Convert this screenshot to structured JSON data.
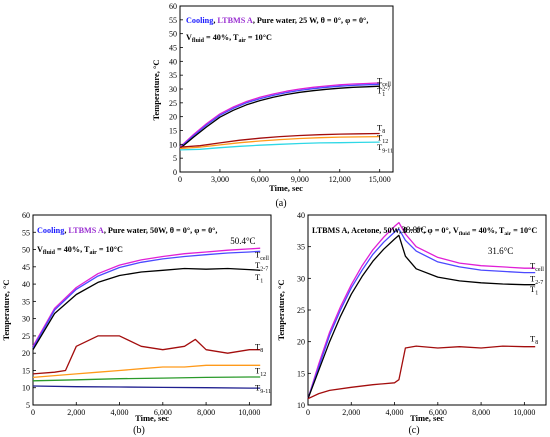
{
  "colors": {
    "cooling": "#1a1aff",
    "ltbms": "#9a2fd1",
    "T_cell": "#e01fd6",
    "T_2_7": "#4b49ff",
    "T_1": "#000000",
    "T_8": "#a30d0d",
    "T_12": "#ff9a1a",
    "T_9_11": "#2fd8e6",
    "T_green": "#2a9a2a",
    "T_navy": "#1f1f8f"
  },
  "chart_data": [
    {
      "id": "a",
      "type": "line",
      "caption": "(a)",
      "legend": {
        "cooling": "Cooling",
        "comma": ", ",
        "ltbms": "LTBMS A",
        "rest_line1": ", Pure water, 25 W, θ = 0°, φ = 0°,",
        "vfluid": "V",
        "vfluid_sub": "fluid",
        "vfluid_val": " = 40%, T",
        "tair_sub": "air",
        "tair_val": " = 10°C"
      },
      "xlabel": "Time, sec",
      "ylabel": "Temperature, °C",
      "xlim": [
        0,
        16000
      ],
      "ylim": [
        0,
        60
      ],
      "xticks": [
        0,
        3000,
        6000,
        9000,
        12000,
        15000
      ],
      "xtick_labels": [
        "0",
        "3,000",
        "6,000",
        "9,000",
        "12,000",
        "15,000"
      ],
      "yticks": [
        0,
        5,
        10,
        15,
        20,
        25,
        30,
        35,
        40,
        45,
        50,
        55,
        60
      ],
      "ytick_labels": [
        "0",
        "5",
        "10",
        "15",
        "20",
        "25",
        "30",
        "35",
        "40",
        "45",
        "50",
        "55",
        "60"
      ],
      "series": [
        {
          "name": "T_cell",
          "color": "#e01fd6",
          "x": [
            0,
            1000,
            2000,
            3000,
            4000,
            5000,
            6000,
            7000,
            8000,
            9000,
            10000,
            11000,
            12000,
            13000,
            14000,
            15000
          ],
          "y": [
            9,
            13.5,
            17.5,
            21,
            23.5,
            25.5,
            27,
            28.2,
            29.2,
            30,
            30.6,
            31.1,
            31.5,
            31.8,
            32,
            32.2
          ]
        },
        {
          "name": "T_2-7",
          "color": "#4b49ff",
          "x": [
            0,
            1000,
            2000,
            3000,
            4000,
            5000,
            6000,
            7000,
            8000,
            9000,
            10000,
            11000,
            12000,
            13000,
            14000,
            15000
          ],
          "y": [
            8.8,
            13,
            17,
            20.5,
            23,
            25,
            26.5,
            27.7,
            28.7,
            29.5,
            30.1,
            30.6,
            31,
            31.3,
            31.5,
            31.7
          ]
        },
        {
          "name": "T_1",
          "color": "#000000",
          "x": [
            0,
            1000,
            2000,
            3000,
            4000,
            5000,
            6000,
            7000,
            8000,
            9000,
            10000,
            11000,
            12000,
            13000,
            14000,
            15000
          ],
          "y": [
            8.5,
            12.5,
            16.3,
            19.8,
            22.3,
            24.3,
            25.8,
            27,
            28,
            28.8,
            29.4,
            29.9,
            30.3,
            30.6,
            30.8,
            31
          ]
        },
        {
          "name": "T_8",
          "color": "#a30d0d",
          "x": [
            0,
            1500,
            3000,
            4500,
            6000,
            7500,
            9000,
            10500,
            12000,
            13500,
            15000
          ],
          "y": [
            9,
            9.5,
            10.5,
            11.5,
            12.2,
            12.8,
            13.2,
            13.5,
            13.7,
            13.8,
            13.9
          ]
        },
        {
          "name": "T_12",
          "color": "#ff9a1a",
          "x": [
            0,
            1500,
            3000,
            4500,
            6000,
            7500,
            9000,
            10500,
            12000,
            13500,
            15000
          ],
          "y": [
            8.5,
            9,
            9.8,
            10.6,
            11.2,
            11.7,
            12.1,
            12.4,
            12.6,
            12.7,
            12.8
          ]
        },
        {
          "name": "T_9-11",
          "color": "#2fd8e6",
          "x": [
            0,
            1500,
            3000,
            4500,
            6000,
            7500,
            9000,
            10500,
            12000,
            13500,
            15000
          ],
          "y": [
            8,
            8.2,
            8.8,
            9.3,
            9.7,
            10,
            10.3,
            10.5,
            10.6,
            10.7,
            10.8
          ]
        }
      ],
      "series_labels": [
        {
          "main": "T",
          "sub": "cell",
          "y": 33
        },
        {
          "main": "T",
          "sub": "2-7",
          "y": 31.5
        },
        {
          "main": "T",
          "sub": "1",
          "y": 29.5
        },
        {
          "main": "T",
          "sub": "8",
          "y": 16
        },
        {
          "main": "T",
          "sub": "12",
          "y": 12.5
        },
        {
          "main": "T",
          "sub": "9-11",
          "y": 9
        }
      ]
    },
    {
      "id": "b",
      "type": "line",
      "caption": "(b)",
      "legend": {
        "cooling": "Cooling",
        "comma": ", ",
        "ltbms": "LTBMS A",
        "rest_line1": ", Pure water, 50W, θ = 0°, φ = 0°,",
        "vfluid": "V",
        "vfluid_sub": "fluid",
        "vfluid_val": " = 40%, T",
        "tair_sub": "air",
        "tair_val": " = 10°C"
      },
      "annotations": [
        {
          "text": "50.4°C",
          "x": 9700,
          "y": 50.4
        }
      ],
      "xlabel": "Time, sec",
      "ylabel": "Temperature, °C",
      "xlim": [
        0,
        11000
      ],
      "ylim": [
        5,
        60
      ],
      "xticks": [
        0,
        2000,
        4000,
        6000,
        8000,
        10000
      ],
      "xtick_labels": [
        "0",
        "2,000",
        "4,000",
        "6,000",
        "8,000",
        "10,000"
      ],
      "yticks": [
        5,
        10,
        15,
        20,
        25,
        30,
        35,
        40,
        45,
        50,
        55,
        60
      ],
      "ytick_labels": [
        "5",
        "10",
        "15",
        "20",
        "25",
        "30",
        "35",
        "40",
        "45",
        "50",
        "55",
        "60"
      ],
      "series": [
        {
          "name": "T_cell",
          "color": "#e01fd6",
          "x": [
            0,
            1000,
            2000,
            3000,
            4000,
            5000,
            6000,
            7000,
            8000,
            9000,
            10000,
            10500
          ],
          "y": [
            22,
            33,
            39,
            43,
            45.5,
            47,
            48,
            48.8,
            49.3,
            49.8,
            50.2,
            50.4
          ]
        },
        {
          "name": "T_2-7",
          "color": "#4b49ff",
          "x": [
            0,
            1000,
            2000,
            3000,
            4000,
            5000,
            6000,
            7000,
            8000,
            9000,
            10000,
            10500
          ],
          "y": [
            21.5,
            32.5,
            38.5,
            42.3,
            44.8,
            46.3,
            47.3,
            48,
            48.5,
            49,
            49.3,
            49.5
          ]
        },
        {
          "name": "T_1",
          "color": "#000000",
          "x": [
            0,
            1000,
            2000,
            3000,
            4000,
            5000,
            6000,
            7000,
            8000,
            9000,
            10000,
            10500
          ],
          "y": [
            21,
            31.5,
            37,
            40.5,
            42.5,
            43.5,
            44,
            44.5,
            44.3,
            44.5,
            44.2,
            44
          ]
        },
        {
          "name": "T_8",
          "color": "#a30d0d",
          "x": [
            0,
            1000,
            1500,
            2000,
            3000,
            4000,
            5000,
            6000,
            7000,
            7500,
            8000,
            9000,
            10000,
            10500
          ],
          "y": [
            14,
            14.5,
            15,
            22,
            25,
            25,
            22,
            21,
            22,
            24,
            21,
            20,
            21,
            21
          ]
        },
        {
          "name": "T_12",
          "color": "#ff9a1a",
          "x": [
            0,
            1000,
            2000,
            3000,
            4000,
            5000,
            6000,
            7000,
            8000,
            9000,
            10000,
            10500
          ],
          "y": [
            13,
            13.5,
            14,
            14.5,
            15,
            15.5,
            16,
            16,
            16.5,
            16.5,
            16.5,
            16.5
          ]
        },
        {
          "name": "T_green",
          "color": "#2a9a2a",
          "x": [
            0,
            2000,
            4000,
            6000,
            8000,
            10000,
            10500
          ],
          "y": [
            12,
            12.3,
            12.6,
            12.8,
            13,
            13.1,
            13.1
          ]
        },
        {
          "name": "T_9-11",
          "color": "#1f1f8f",
          "x": [
            0,
            2000,
            4000,
            6000,
            8000,
            10000,
            10500
          ],
          "y": [
            10.5,
            10.3,
            10.2,
            10.1,
            10,
            9.9,
            9.9
          ]
        }
      ],
      "series_labels": [
        {
          "main": "T",
          "sub": "cell",
          "y": 48.5
        },
        {
          "main": "T",
          "sub": "2-7",
          "y": 45.5
        },
        {
          "main": "T",
          "sub": "1",
          "y": 42
        },
        {
          "main": "T",
          "sub": "8",
          "y": 22
        },
        {
          "main": "T",
          "sub": "12",
          "y": 15
        },
        {
          "main": "T",
          "sub": "9-11",
          "y": 10
        }
      ]
    },
    {
      "id": "c",
      "type": "line",
      "caption": "(c)",
      "legend": {
        "ltbms": "LTBMS A",
        "rest_line1": ", Acetone, 50W, θ = 0°, φ = 0°, V",
        "vfluid_sub": "fluid",
        "vfluid_val": " = 40%, T",
        "tair_sub": "air",
        "tair_val": " = 10°C"
      },
      "annotations": [
        {
          "text": "38.8°C",
          "x": 4900,
          "y": 36.5
        },
        {
          "text": "31.6°C",
          "x": 8900,
          "y": 33.2
        }
      ],
      "xlabel": "Time, sec",
      "ylabel": "Temperature, °C",
      "xlim": [
        0,
        11000
      ],
      "ylim": [
        10,
        40
      ],
      "xticks": [
        0,
        2000,
        4000,
        6000,
        8000,
        10000
      ],
      "xtick_labels": [
        "0",
        "2,000",
        "4,000",
        "6,000",
        "8,000",
        "10,000"
      ],
      "yticks": [
        10,
        15,
        20,
        25,
        30,
        35,
        40
      ],
      "ytick_labels": [
        "10",
        "15",
        "20",
        "25",
        "30",
        "35",
        "40"
      ],
      "series": [
        {
          "name": "T_cell",
          "color": "#e01fd6",
          "x": [
            0,
            500,
            1000,
            1500,
            2000,
            2500,
            3000,
            3500,
            4000,
            4200,
            4500,
            5000,
            6000,
            7000,
            8000,
            9000,
            10000,
            10500
          ],
          "y": [
            11,
            16.5,
            21.5,
            25.5,
            29,
            32,
            34.5,
            36.5,
            38.2,
            38.8,
            37,
            35,
            33.3,
            32.4,
            32,
            31.8,
            31.6,
            31.6
          ]
        },
        {
          "name": "T_2-7",
          "color": "#4b49ff",
          "x": [
            0,
            500,
            1000,
            1500,
            2000,
            2500,
            3000,
            3500,
            4000,
            4200,
            4500,
            5000,
            6000,
            7000,
            8000,
            9000,
            10000,
            10500
          ],
          "y": [
            11,
            16,
            21,
            25,
            28.5,
            31.3,
            33.8,
            35.7,
            37.3,
            37.8,
            36,
            34.3,
            32.6,
            31.8,
            31.3,
            31.1,
            30.9,
            30.9
          ]
        },
        {
          "name": "T_1",
          "color": "#000000",
          "x": [
            0,
            500,
            1000,
            1500,
            2000,
            2500,
            3000,
            3500,
            4000,
            4200,
            4500,
            5000,
            6000,
            7000,
            8000,
            9000,
            10000,
            10500
          ],
          "y": [
            11,
            15.5,
            20,
            24,
            27.5,
            30.3,
            32.7,
            34.6,
            36.2,
            36.8,
            33.5,
            31.5,
            30.2,
            29.6,
            29.3,
            29.1,
            29,
            29
          ]
        },
        {
          "name": "T_8",
          "color": "#a30d0d",
          "x": [
            0,
            500,
            1000,
            2000,
            3000,
            4000,
            4200,
            4500,
            5000,
            6000,
            7000,
            8000,
            9000,
            10000,
            10500
          ],
          "y": [
            11,
            11.8,
            12.3,
            12.8,
            13.2,
            13.5,
            14,
            19,
            19.3,
            19,
            19.2,
            19,
            19.3,
            19.2,
            19.2
          ]
        }
      ],
      "series_labels": [
        {
          "main": "T",
          "sub": "cell",
          "y": 32
        },
        {
          "main": "T",
          "sub": "2-7",
          "y": 30
        },
        {
          "main": "T",
          "sub": "1",
          "y": 28.3
        },
        {
          "main": "T",
          "sub": "8",
          "y": 20.5
        }
      ]
    }
  ]
}
